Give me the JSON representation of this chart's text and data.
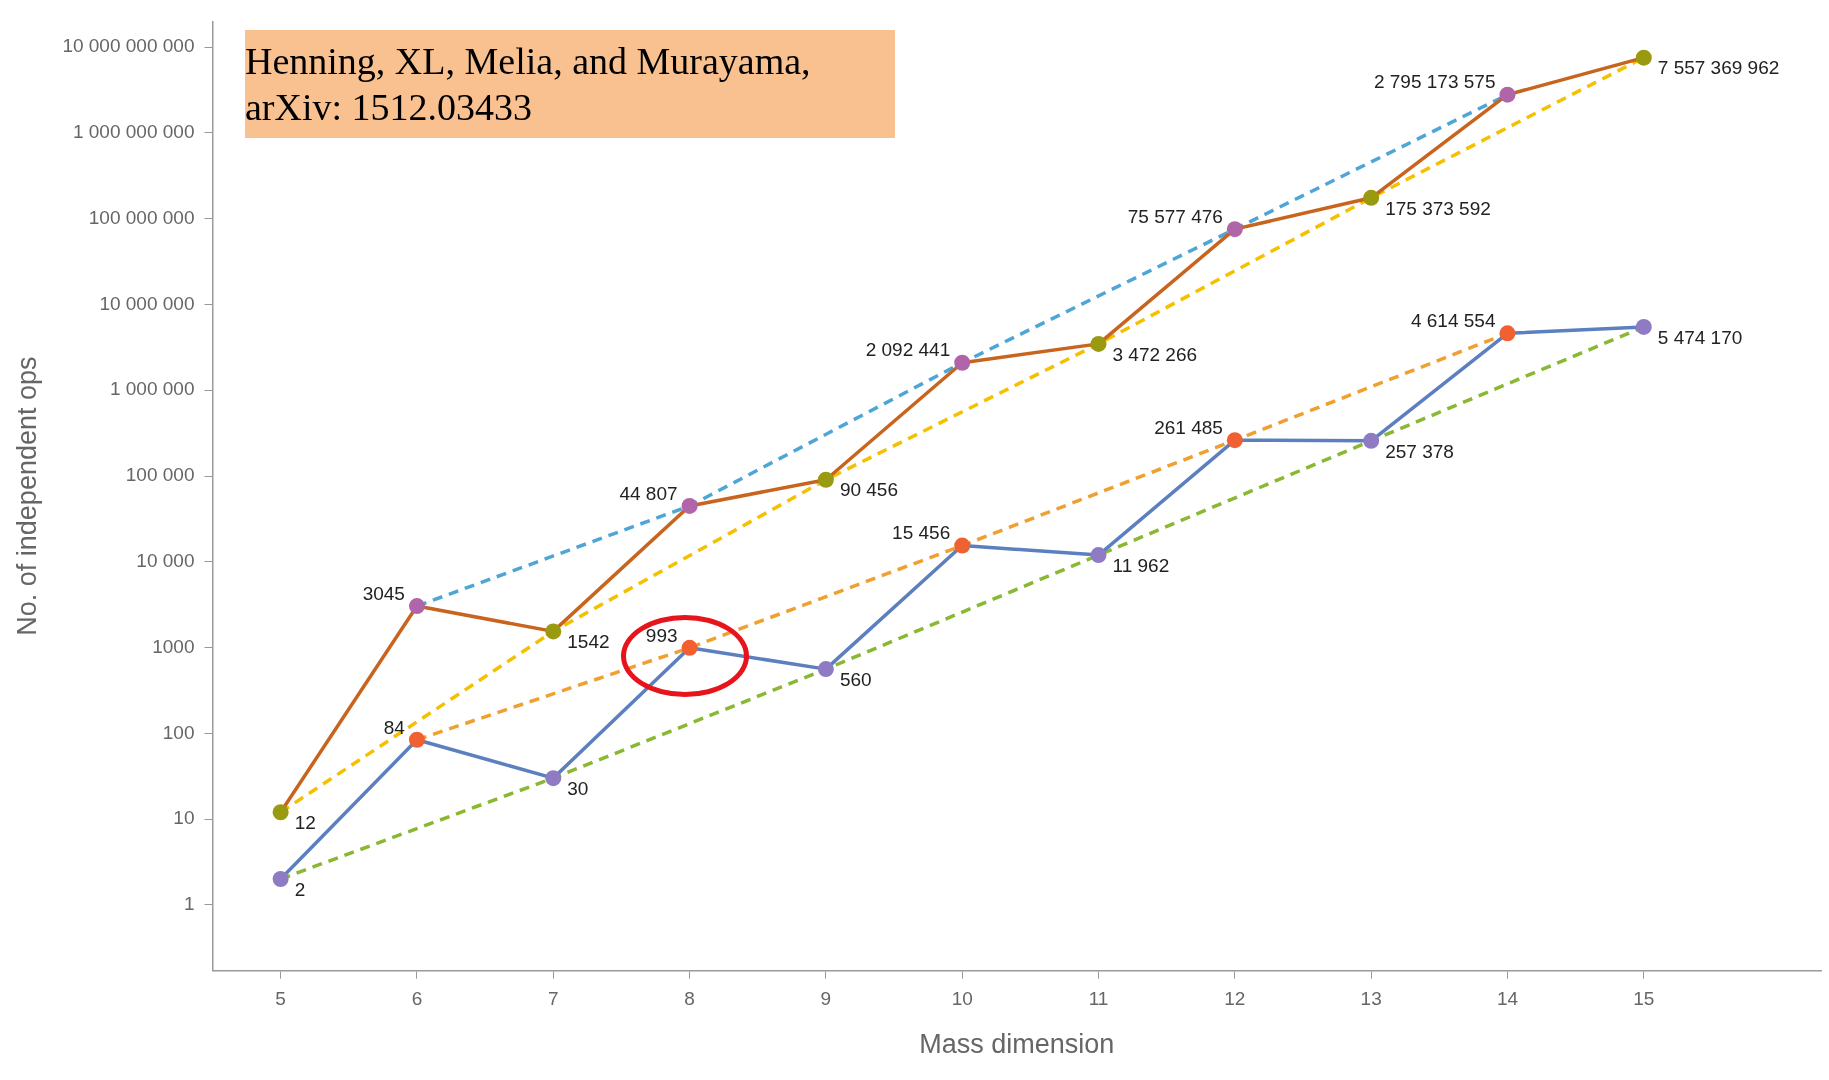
{
  "chart_data": {
    "type": "line",
    "xlabel": "Mass dimension",
    "ylabel": "No. of independent ops",
    "annotations": [
      "Henning, XL, Melia, and Murayama, arXiv: 1512.03433"
    ],
    "log": "y",
    "grid": false,
    "legend": false,
    "marker": "circle",
    "xlim": [
      4.5,
      16.3
    ],
    "xticks": [
      5,
      6,
      7,
      8,
      9,
      10,
      11,
      12,
      13,
      14,
      15
    ],
    "ylim": [
      0.17,
      20000000000
    ],
    "yticks": [
      {
        "value": 1,
        "label": "1"
      },
      {
        "value": 10,
        "label": "10"
      },
      {
        "value": 100,
        "label": "100"
      },
      {
        "value": 1000,
        "label": "1000"
      },
      {
        "value": 10000,
        "label": "10 000"
      },
      {
        "value": 100000,
        "label": "100 000"
      },
      {
        "value": 1000000,
        "label": "1 000 000"
      },
      {
        "value": 10000000,
        "label": "10 000 000"
      },
      {
        "value": 100000000,
        "label": "100 000 000"
      },
      {
        "value": 1000000000,
        "label": "1 000 000 000"
      },
      {
        "value": 10000000000,
        "label": "10 000 000 000"
      }
    ],
    "series": [
      {
        "color": "#4ea6d6",
        "line_style": "dashed",
        "marker": "none",
        "x": [
          6,
          8,
          10,
          12,
          14
        ],
        "values": [
          3045,
          44807,
          2092441,
          75577476,
          2795173575
        ]
      },
      {
        "color": "#f5c000",
        "line_style": "dashed",
        "marker": "none",
        "x": [
          5,
          7,
          9,
          11,
          13,
          15
        ],
        "values": [
          12,
          1542,
          90456,
          3472266,
          175373592,
          7557369962
        ]
      },
      {
        "color": "#f0a030",
        "line_style": "dashed",
        "marker": "none",
        "x": [
          6,
          8,
          10,
          12,
          14
        ],
        "values": [
          84,
          993,
          15456,
          261485,
          4614554
        ]
      },
      {
        "color": "#8ab832",
        "line_style": "dashed",
        "marker": "none",
        "x": [
          5,
          7,
          9,
          11,
          13,
          15
        ],
        "values": [
          2,
          30,
          560,
          11962,
          257378,
          5474170
        ]
      },
      {
        "color": "#c8641e",
        "line_style": "solid",
        "x": [
          5,
          6,
          7,
          8,
          9,
          10,
          11,
          12,
          13,
          14,
          15
        ],
        "values": [
          12,
          3045,
          1542,
          44807,
          90456,
          2092441,
          3472266,
          75577476,
          175373592,
          2795173575,
          7557369962
        ],
        "colors": [
          "#9a9a10",
          "#b065a8",
          "#9a9a10",
          "#b065a8",
          "#9a9a10",
          "#b065a8",
          "#9a9a10",
          "#b065a8",
          "#9a9a10",
          "#b065a8",
          "#9a9a10"
        ],
        "value_labels": [
          "12",
          "3045",
          "1542",
          "44 807",
          "90 456",
          "2 092 441",
          "3 472 266",
          "75 577 476",
          "175 373 592",
          "2 795 173 575",
          "7 557 369 962"
        ]
      },
      {
        "color": "#5b7fbf",
        "line_style": "solid",
        "x": [
          5,
          6,
          7,
          8,
          9,
          10,
          11,
          12,
          13,
          14,
          15
        ],
        "values": [
          2,
          84,
          30,
          993,
          560,
          15456,
          11962,
          261485,
          257378,
          4614554,
          5474170
        ],
        "colors": [
          "#8f7ac4",
          "#f06030",
          "#8f7ac4",
          "#f06030",
          "#8f7ac4",
          "#f06030",
          "#8f7ac4",
          "#f06030",
          "#8f7ac4",
          "#f06030",
          "#8f7ac4"
        ],
        "value_labels": [
          "2",
          "84",
          "30",
          "993",
          "560",
          "15 456",
          "11 962",
          "261 485",
          "257 378",
          "4 614 554",
          "5 474 170"
        ]
      }
    ]
  }
}
